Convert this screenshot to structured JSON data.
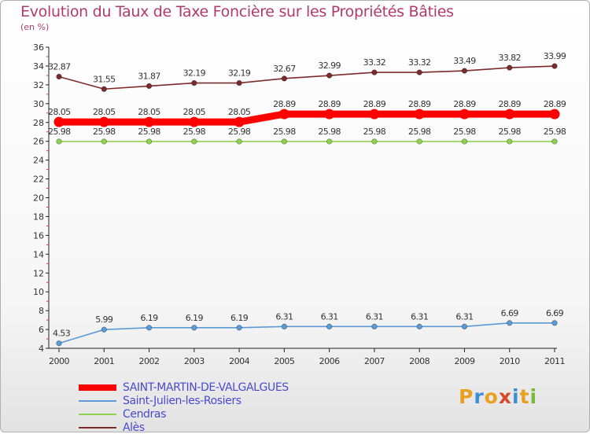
{
  "header": {
    "title": "Evolution du Taux de Taxe Foncière sur les Propriétés Bâties",
    "subtitle": "(en %)"
  },
  "brand": {
    "logo_text": "Proxiti",
    "logo_colors": [
      "#e8a020",
      "#3a8fd6",
      "#e8a020",
      "#d64a2a",
      "#3a8fd6",
      "#e8a020",
      "#7ab83a"
    ]
  },
  "chart_data": {
    "type": "line",
    "title": "Evolution du Taux de Taxe Foncière sur les Propriétés Bâties",
    "ylabel": "(en %)",
    "x": [
      "2000",
      "2001",
      "2002",
      "2003",
      "2004",
      "2005",
      "2006",
      "2007",
      "2008",
      "2009",
      "2010",
      "2011"
    ],
    "ylim": [
      4,
      36
    ],
    "yticks": [
      4,
      6,
      8,
      10,
      12,
      14,
      16,
      18,
      20,
      22,
      24,
      26,
      28,
      30,
      32,
      34,
      36
    ],
    "grid": false,
    "legend_position": "bottom",
    "series": [
      {
        "name": "SAINT-MARTIN-DE-VALGALGUES",
        "color": "#ff0000",
        "values": [
          28.05,
          28.05,
          28.05,
          28.05,
          28.05,
          28.89,
          28.89,
          28.89,
          28.89,
          28.89,
          28.89,
          28.89
        ],
        "labels": [
          "28.05",
          "28.05",
          "28.05",
          "28.05",
          "28.05",
          "28.89",
          "28.89",
          "28.89",
          "28.89",
          "28.89",
          "28.89",
          "28.89"
        ]
      },
      {
        "name": "Saint-Julien-les-Rosiers",
        "color": "#5b9bd5",
        "values": [
          4.53,
          5.99,
          6.19,
          6.19,
          6.19,
          6.31,
          6.31,
          6.31,
          6.31,
          6.31,
          6.69,
          6.69
        ],
        "labels": [
          "4.53",
          "5.99",
          "6.19",
          "6.19",
          "6.19",
          "6.31",
          "6.31",
          "6.31",
          "6.31",
          "6.31",
          "6.69",
          "6.69"
        ]
      },
      {
        "name": "Cendras",
        "color": "#8fd14f",
        "values": [
          25.98,
          25.98,
          25.98,
          25.98,
          25.98,
          25.98,
          25.98,
          25.98,
          25.98,
          25.98,
          25.98,
          25.98
        ],
        "labels": [
          "25.98",
          "25.98",
          "25.98",
          "25.98",
          "25.98",
          "25.98",
          "25.98",
          "25.98",
          "25.98",
          "25.98",
          "25.98",
          "25.98"
        ]
      },
      {
        "name": "Alès",
        "color": "#7b2b2b",
        "values": [
          32.87,
          31.55,
          31.87,
          32.19,
          32.19,
          32.67,
          32.99,
          33.32,
          33.32,
          33.49,
          33.82,
          33.99
        ],
        "labels": [
          "32.87",
          "31.55",
          "31.87",
          "32.19",
          "32.19",
          "32.67",
          "32.99",
          "33.32",
          "33.32",
          "33.49",
          "33.82",
          "33.99"
        ]
      }
    ]
  }
}
